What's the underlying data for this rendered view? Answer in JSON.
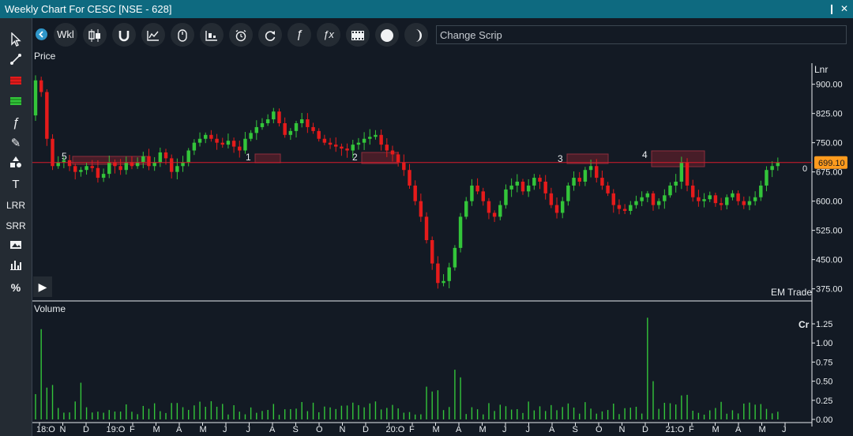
{
  "window": {
    "title": "Weekly Chart For CESC [NSE - 628]",
    "pin": "❙",
    "close": "✕"
  },
  "left_tools": [
    {
      "name": "pointer-icon",
      "label": "↗"
    },
    {
      "name": "trendline-icon",
      "label": "∕"
    },
    {
      "name": "red-zone-icon",
      "label": ""
    },
    {
      "name": "green-zone-icon",
      "label": ""
    },
    {
      "name": "fibonacci-icon",
      "label": "ƒ"
    },
    {
      "name": "brush-icon",
      "label": "✎"
    },
    {
      "name": "shapes-icon",
      "label": "▲"
    },
    {
      "name": "text-tool-icon",
      "label": "T"
    },
    {
      "name": "lrr-tool",
      "label": "LRR"
    },
    {
      "name": "srr-tool",
      "label": "SRR"
    },
    {
      "name": "image-icon",
      "label": "▣"
    },
    {
      "name": "bar-stats-icon",
      "label": "▐"
    },
    {
      "name": "percent-icon",
      "label": "%"
    },
    {
      "name": "play-icon",
      "label": "▶"
    }
  ],
  "toolbar": {
    "period": "Wkl",
    "buttons": [
      {
        "name": "candle-type-icon",
        "label": "║"
      },
      {
        "name": "magnet-icon",
        "label": "∪"
      },
      {
        "name": "indicator-chart-icon",
        "label": "╱"
      },
      {
        "name": "mouse-icon",
        "label": "▮"
      },
      {
        "name": "study-icon",
        "label": "╠"
      },
      {
        "name": "alarm-icon",
        "label": "◷"
      },
      {
        "name": "refresh-icon",
        "label": "↻"
      },
      {
        "name": "formula-icon",
        "label": "ƒ"
      },
      {
        "name": "formula-x-icon",
        "label": "ƒx"
      },
      {
        "name": "film-icon",
        "label": "▤"
      },
      {
        "name": "circle-icon",
        "label": "●"
      },
      {
        "name": "moon-icon",
        "label": "◑"
      }
    ],
    "scrip_placeholder": "Change Scrip"
  },
  "price_panel": {
    "label": "Price",
    "scale_label": "Lnr",
    "last_price": "699.10",
    "zero_mark": "0",
    "watermark": "EM Trade",
    "y_ticks": [
      "900.00",
      "825.00",
      "750.00",
      "675.00",
      "600.00",
      "525.00",
      "450.00",
      "375.00"
    ],
    "zones": [
      {
        "label": "5"
      },
      {
        "label": "1"
      },
      {
        "label": "2"
      },
      {
        "label": "3"
      },
      {
        "label": "4"
      }
    ]
  },
  "volume_panel": {
    "label": "Volume",
    "scale_label": "Cr",
    "y_ticks": [
      "1.25",
      "1.00",
      "0.75",
      "0.50",
      "0.25",
      "0.00"
    ]
  },
  "x_axis": [
    "18:O",
    "N",
    "D",
    "19:O",
    "F",
    "M",
    "A",
    "M",
    "J",
    "J",
    "A",
    "S",
    "O",
    "N",
    "D",
    "20:O",
    "F",
    "M",
    "A",
    "M",
    "J",
    "J",
    "A",
    "S",
    "O",
    "N",
    "D",
    "21:O",
    "F",
    "M",
    "A",
    "M",
    "J"
  ],
  "colors": {
    "up": "#33c53a",
    "down": "#e51b1b",
    "zone_fill": "#5a1f2a",
    "zone_stroke": "#8e2d3c",
    "price_line": "#d61c2c",
    "price_badge": "#ff9b1e",
    "titlebar": "#0e6a80"
  },
  "chart_data": {
    "type": "candlestick",
    "price_ylim": [
      350,
      950
    ],
    "reference_price": 699.1,
    "price_path": [
      820,
      910,
      880,
      760,
      690,
      700,
      705,
      690,
      675,
      680,
      690,
      685,
      660,
      670,
      700,
      690,
      680,
      700,
      690,
      700,
      715,
      690,
      700,
      725,
      710,
      675,
      690,
      700,
      730,
      750,
      760,
      770,
      760,
      750,
      745,
      755,
      740,
      730,
      760,
      775,
      790,
      800,
      810,
      830,
      800,
      770,
      780,
      800,
      810,
      790,
      780,
      760,
      750,
      745,
      740,
      735,
      730,
      745,
      750,
      760,
      765,
      770,
      745,
      730,
      720,
      700,
      680,
      640,
      600,
      560,
      500,
      440,
      390,
      395,
      430,
      480,
      560,
      600,
      640,
      625,
      600,
      570,
      560,
      590,
      630,
      640,
      650,
      625,
      640,
      660,
      650,
      620,
      590,
      570,
      600,
      640,
      660,
      650,
      680,
      690,
      660,
      640,
      620,
      590,
      580,
      575,
      590,
      600,
      610,
      620,
      590,
      600,
      615,
      640,
      650,
      700,
      640,
      610,
      600,
      605,
      615,
      595,
      590,
      610,
      620,
      600,
      590,
      600,
      610,
      640,
      680,
      690,
      699
    ]
  }
}
